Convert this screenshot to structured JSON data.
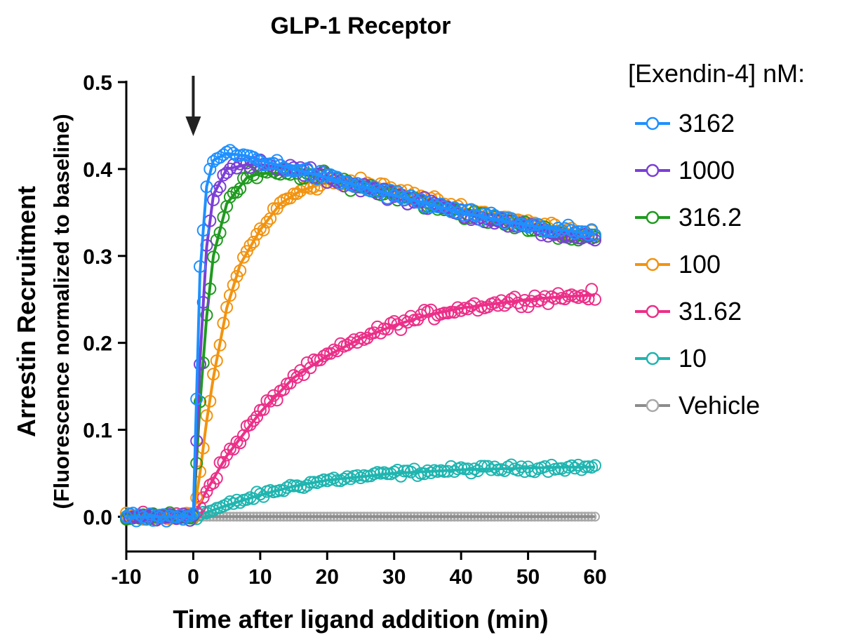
{
  "chart_data": {
    "type": "scatter",
    "title": "GLP-1 Receptor",
    "xlabel": "Time after ligand addition (min)",
    "ylabel": "Arrestin Recruitment",
    "ylabel_sub": "(Fluorescence normalized to baseline)",
    "xlim": [
      -10,
      60
    ],
    "ylim": [
      -0.04,
      0.5
    ],
    "x_ticks": [
      -10,
      0,
      10,
      20,
      30,
      40,
      50,
      60
    ],
    "x_tick_labels": [
      "-10",
      "0",
      "10",
      "20",
      "30",
      "40",
      "50",
      "60"
    ],
    "y_ticks": [
      0.0,
      0.1,
      0.2,
      0.3,
      0.4,
      0.5
    ],
    "y_tick_labels": [
      "0.0",
      "0.1",
      "0.2",
      "0.3",
      "0.4",
      "0.5"
    ],
    "annotation": {
      "type": "arrow",
      "x": 0,
      "label": ""
    },
    "legend_title": "[Exendin-4] nM:",
    "series": [
      {
        "name": "3162",
        "color": "#1e90ff",
        "fit": {
          "x": [
            -10,
            -5,
            -1,
            0,
            1,
            2,
            3,
            5,
            8,
            10,
            15,
            20,
            30,
            40,
            50,
            60
          ],
          "y": [
            0,
            0,
            0,
            0,
            0.28,
            0.38,
            0.41,
            0.418,
            0.415,
            0.41,
            0.4,
            0.39,
            0.37,
            0.35,
            0.335,
            0.325
          ]
        }
      },
      {
        "name": "1000",
        "color": "#7b3fd6",
        "fit": {
          "x": [
            -10,
            -5,
            -1,
            0,
            1,
            2,
            3,
            5,
            8,
            10,
            15,
            20,
            30,
            40,
            50,
            60
          ],
          "y": [
            0,
            0,
            0,
            0,
            0.18,
            0.31,
            0.37,
            0.4,
            0.405,
            0.405,
            0.4,
            0.39,
            0.37,
            0.35,
            0.332,
            0.318
          ]
        }
      },
      {
        "name": "316.2",
        "color": "#1f9a1f",
        "fit": {
          "x": [
            -10,
            -5,
            -1,
            0,
            1,
            2,
            3,
            5,
            8,
            10,
            15,
            20,
            30,
            40,
            50,
            60
          ],
          "y": [
            0,
            0,
            0,
            0,
            0.13,
            0.23,
            0.3,
            0.36,
            0.39,
            0.395,
            0.395,
            0.39,
            0.37,
            0.35,
            0.333,
            0.318
          ]
        }
      },
      {
        "name": "100",
        "color": "#f2930f",
        "fit": {
          "x": [
            -10,
            -5,
            -1,
            0,
            1,
            2,
            3,
            5,
            7,
            10,
            13,
            16,
            20,
            25,
            30,
            40,
            50,
            60
          ],
          "y": [
            0,
            0,
            0,
            0,
            0.05,
            0.11,
            0.16,
            0.24,
            0.29,
            0.33,
            0.36,
            0.375,
            0.385,
            0.385,
            0.375,
            0.355,
            0.338,
            0.325
          ]
        }
      },
      {
        "name": "31.62",
        "color": "#ec2f88",
        "fit": {
          "x": [
            -10,
            -5,
            -1,
            0,
            2,
            5,
            8,
            10,
            15,
            20,
            25,
            30,
            35,
            40,
            45,
            50,
            55,
            60
          ],
          "y": [
            0,
            0,
            0,
            0,
            0.03,
            0.07,
            0.1,
            0.12,
            0.16,
            0.185,
            0.205,
            0.22,
            0.232,
            0.24,
            0.245,
            0.25,
            0.253,
            0.255
          ]
        }
      },
      {
        "name": "10",
        "color": "#1fb5b0",
        "fit": {
          "x": [
            -10,
            -5,
            -1,
            0,
            2,
            5,
            10,
            15,
            20,
            25,
            30,
            35,
            40,
            45,
            50,
            55,
            60
          ],
          "y": [
            0,
            0,
            0,
            0,
            0.005,
            0.013,
            0.025,
            0.035,
            0.042,
            0.046,
            0.05,
            0.052,
            0.054,
            0.055,
            0.056,
            0.057,
            0.057
          ]
        }
      },
      {
        "name": "Vehicle",
        "color": "#a9a9a9",
        "fit": {
          "x": [
            -10,
            60
          ],
          "y": [
            0,
            0
          ]
        }
      }
    ]
  }
}
